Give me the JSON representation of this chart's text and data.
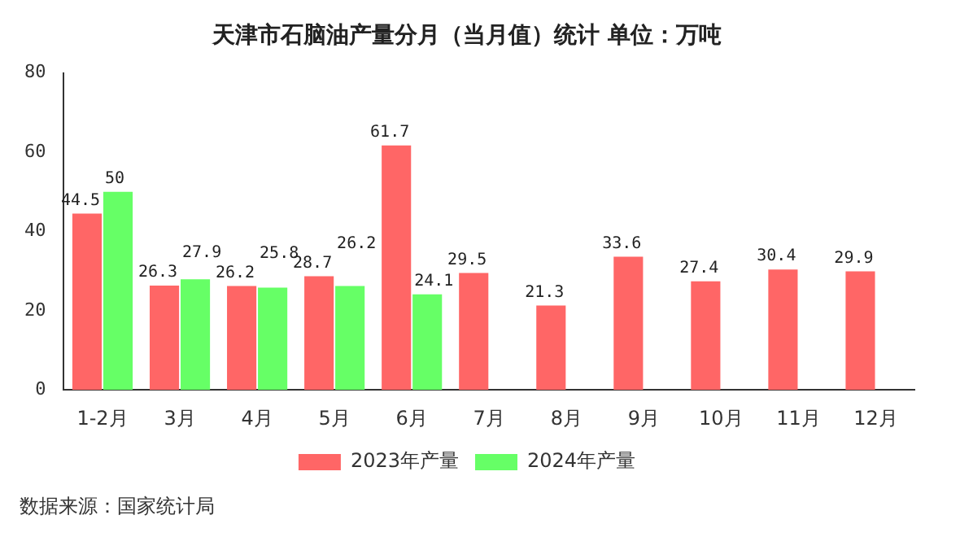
{
  "chart_data": {
    "type": "bar",
    "title": "天津市石脑油产量分月（当月值）统计 单位：万吨",
    "categories": [
      "1-2月",
      "3月",
      "4月",
      "5月",
      "6月",
      "7月",
      "8月",
      "9月",
      "10月",
      "11月",
      "12月"
    ],
    "series": [
      {
        "name": "2023年产量",
        "color": "#ff6666",
        "values": [
          44.5,
          26.3,
          26.2,
          28.7,
          61.7,
          29.5,
          21.3,
          33.6,
          27.4,
          30.4,
          29.9
        ]
      },
      {
        "name": "2024年产量",
        "color": "#66ff66",
        "values": [
          50,
          27.9,
          25.8,
          26.2,
          24.1,
          null,
          null,
          null,
          null,
          null,
          null
        ]
      }
    ],
    "ylim": [
      0,
      80
    ],
    "yticks": [
      0,
      20,
      40,
      60,
      80
    ],
    "grid": false,
    "legend": "bottom",
    "data_labels": true,
    "annotations": [
      "数据来源：国家统计局"
    ]
  }
}
